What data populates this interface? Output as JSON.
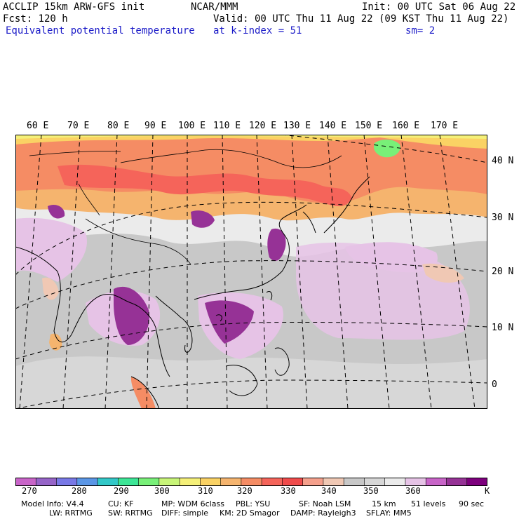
{
  "header": {
    "title": "ACCLIP 15km ARW-GFS init",
    "org": "NCAR/MMM",
    "init": "Init: 00 UTC Sat 06 Aug 22",
    "fcst": "Fcst:  120 h",
    "valid": "Valid: 00 UTC Thu 11 Aug 22 (09 KST Thu 11 Aug 22)",
    "field": "Equivalent potential temperature",
    "level": "at k-index =  51",
    "smooth": "sm= 2"
  },
  "map": {
    "lon_labels": [
      "60 E",
      "70 E",
      "80 E",
      "90 E",
      "100 E",
      "110 E",
      "120 E",
      "130 E",
      "140 E",
      "150 E",
      "160 E",
      "170 E"
    ],
    "lat_labels": [
      "40 N",
      "30 N",
      "20 N",
      "10 N",
      "0"
    ]
  },
  "colorbar": {
    "colors": [
      "#c864c8",
      "#9664c8",
      "#7878e6",
      "#5a96e6",
      "#32c8c8",
      "#3ce696",
      "#78f078",
      "#c8f578",
      "#f5f078",
      "#fad264",
      "#f5b46e",
      "#f58c64",
      "#f5645a",
      "#f04b4b",
      "#f5a08c",
      "#f0c8b4",
      "#c8c8c8",
      "#d7d7d7",
      "#ebebeb",
      "#e6c3e6",
      "#c864c8",
      "#963296",
      "#7d007d"
    ],
    "labels": [
      "270",
      "280",
      "290",
      "300",
      "310",
      "320",
      "330",
      "340",
      "350",
      "360",
      "K"
    ]
  },
  "model_info": {
    "line1": [
      "Model Info: V4.4",
      "CU: KF",
      "MP: WDM 6class",
      "PBL: YSU",
      "SF: Noah LSM",
      "15 km",
      "51 levels",
      "90 sec"
    ],
    "line2": [
      "LW: RRTMG",
      "SW: RRTMG",
      "DIFF: simple",
      "KM: 2D Smagor",
      "DAMP: Rayleigh3",
      "SFLAY: MM5"
    ]
  }
}
